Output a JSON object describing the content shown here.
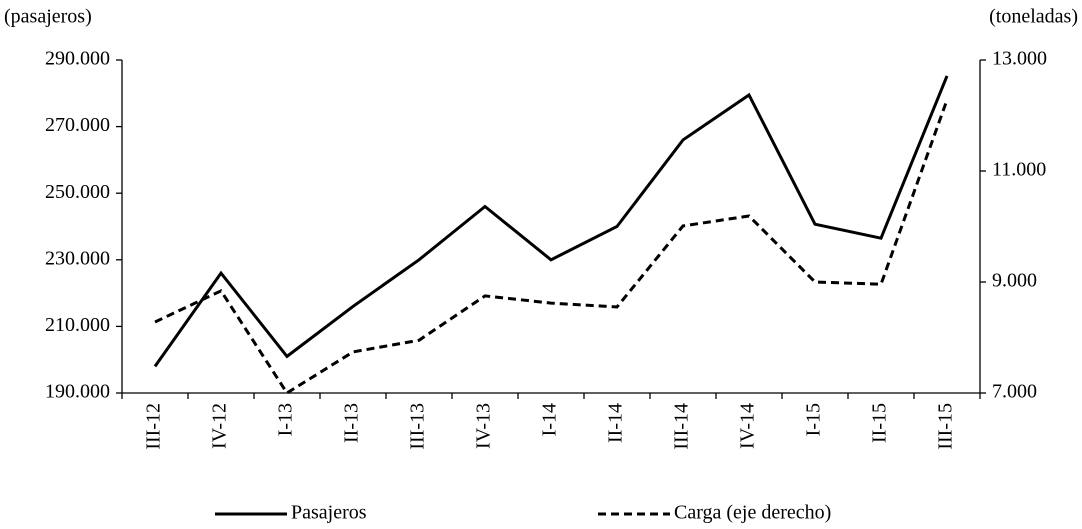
{
  "chart_data": {
    "type": "line",
    "y_label": "(pasajeros)",
    "y2_label": "(toneladas)",
    "categories": [
      "III-12",
      "IV-12",
      "I-13",
      "II-13",
      "III-13",
      "IV-13",
      "I-14",
      "II-14",
      "III-14",
      "IV-14",
      "I-15",
      "II-15",
      "III-15"
    ],
    "series": [
      {
        "name": "Pasajeros",
        "color": "#000000",
        "dash": "solid",
        "values": [
          198000,
          226000,
          201000,
          216000,
          230000,
          246000,
          230000,
          240000,
          266000,
          279500,
          240700,
          236500,
          285200
        ]
      },
      {
        "name": "Carga (eje derecho)",
        "color": "#000000",
        "dash": "dashed",
        "axis": "y2",
        "values": [
          8280,
          8840,
          7000,
          7740,
          7950,
          8750,
          8620,
          8550,
          10010,
          10190,
          9000,
          8960,
          12280
        ]
      }
    ],
    "ylim": [
      190000,
      290000
    ],
    "yticks": [
      {
        "value": 190000,
        "label": "190.000"
      },
      {
        "value": 210000,
        "label": "210.000"
      },
      {
        "value": 230000,
        "label": "230.000"
      },
      {
        "value": 250000,
        "label": "250.000"
      },
      {
        "value": 270000,
        "label": "270.000"
      },
      {
        "value": 290000,
        "label": "290.000"
      }
    ],
    "y2lim": [
      7000,
      13000
    ],
    "y2ticks": [
      {
        "value": 7000,
        "label": "7.000"
      },
      {
        "value": 9000,
        "label": "9.000"
      },
      {
        "value": 11000,
        "label": "11.000"
      },
      {
        "value": 13000,
        "label": "13.000"
      }
    ],
    "grid": false
  }
}
